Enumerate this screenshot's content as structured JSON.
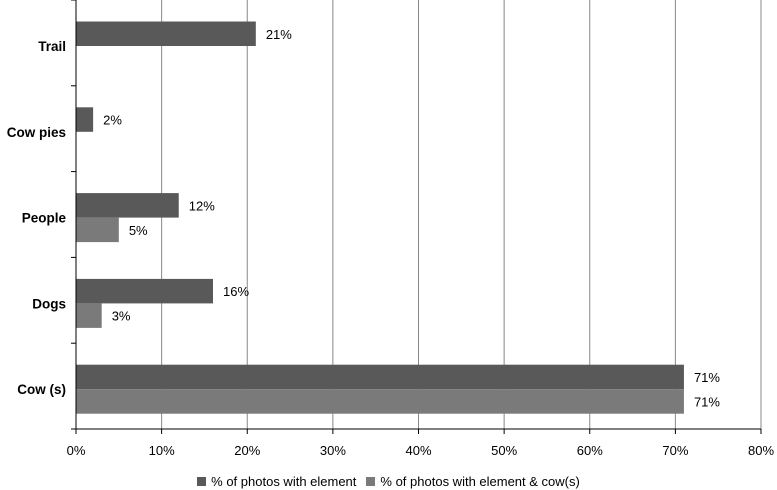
{
  "chart_data": {
    "type": "bar",
    "orientation": "horizontal",
    "categories": [
      "Trail",
      "Cow pies",
      "People",
      "Dogs",
      "Cow (s)"
    ],
    "series": [
      {
        "name": "% of photos with element",
        "color": "#595959",
        "values": [
          21,
          2,
          12,
          16,
          71
        ],
        "labels": [
          "21%",
          "2%",
          "12%",
          "16%",
          "71%"
        ]
      },
      {
        "name": "% of photos with element & cow(s)",
        "color": "#7a7a7a",
        "values": [
          null,
          null,
          5,
          3,
          71
        ],
        "labels": [
          "",
          "",
          "5%",
          "3%",
          "71%"
        ]
      }
    ],
    "xlim": [
      0,
      80
    ],
    "xticks": [
      "0%",
      "10%",
      "20%",
      "30%",
      "40%",
      "50%",
      "60%",
      "70%",
      "80%"
    ],
    "grid": "vertical",
    "legend_position": "bottom"
  }
}
